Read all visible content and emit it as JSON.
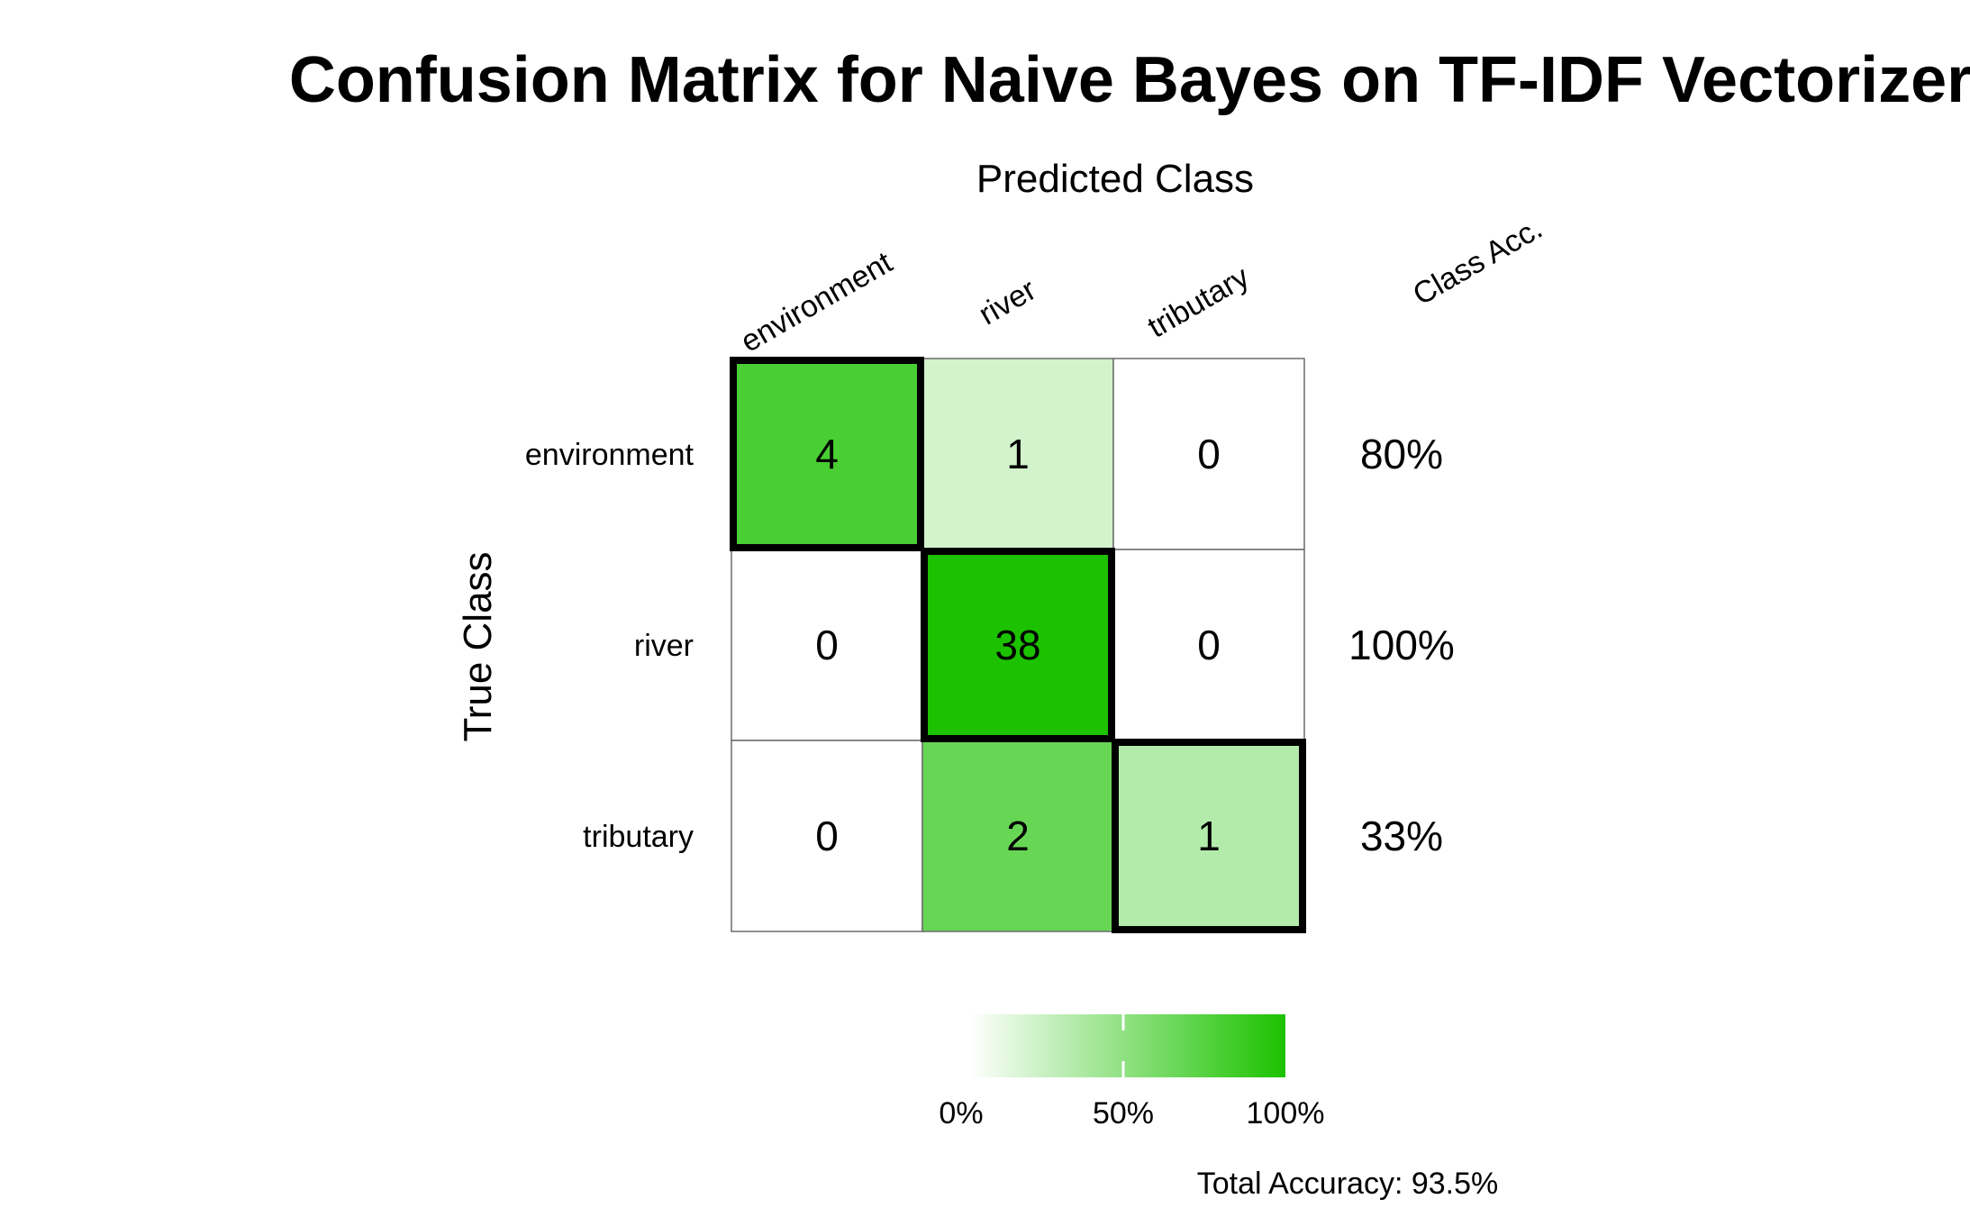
{
  "chart_data": {
    "type": "heatmap",
    "title": "Confusion Matrix for Naive Bayes on TF-IDF Vectorizer",
    "xlabel": "Predicted Class",
    "ylabel": "True Class",
    "classes": [
      "environment",
      "river",
      "tributary"
    ],
    "matrix": [
      [
        4,
        1,
        0
      ],
      [
        0,
        38,
        0
      ],
      [
        0,
        2,
        1
      ]
    ],
    "row_fractions": [
      [
        0.8,
        0.2,
        0.0
      ],
      [
        0.0,
        1.0,
        0.0
      ],
      [
        0.0,
        0.667,
        0.333
      ]
    ],
    "class_acc_header": "Class Acc.",
    "class_accuracy": [
      "80%",
      "100%",
      "33%"
    ],
    "legend": {
      "ticks": [
        "0%",
        "50%",
        "100%"
      ],
      "color_min": "#ffffff",
      "color_max": "#1cc200"
    },
    "total_accuracy": "Total Accuracy: 93.5%"
  }
}
